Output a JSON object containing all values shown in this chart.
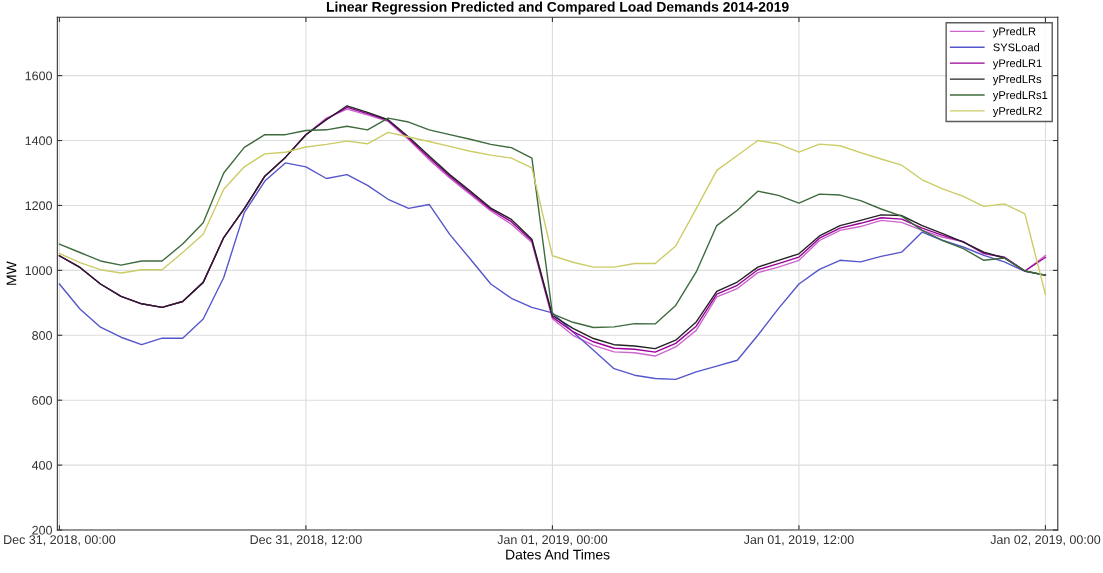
{
  "chart_data": {
    "type": "line",
    "title": "Linear Regression Predicted and Compared Load Demands 2014-2019",
    "xlabel": "Dates And Times",
    "ylabel": "MW",
    "x": [
      "2018-12-31T00:00",
      "2018-12-31T01:00",
      "2018-12-31T02:00",
      "2018-12-31T03:00",
      "2018-12-31T04:00",
      "2018-12-31T05:00",
      "2018-12-31T06:00",
      "2018-12-31T07:00",
      "2018-12-31T08:00",
      "2018-12-31T09:00",
      "2018-12-31T10:00",
      "2018-12-31T11:00",
      "2018-12-31T12:00",
      "2018-12-31T13:00",
      "2018-12-31T14:00",
      "2018-12-31T15:00",
      "2018-12-31T16:00",
      "2018-12-31T17:00",
      "2018-12-31T18:00",
      "2018-12-31T19:00",
      "2018-12-31T20:00",
      "2018-12-31T21:00",
      "2018-12-31T22:00",
      "2018-12-31T23:00",
      "2019-01-01T00:00",
      "2019-01-01T01:00",
      "2019-01-01T02:00",
      "2019-01-01T03:00",
      "2019-01-01T04:00",
      "2019-01-01T05:00",
      "2019-01-01T06:00",
      "2019-01-01T07:00",
      "2019-01-01T08:00",
      "2019-01-01T09:00",
      "2019-01-01T10:00",
      "2019-01-01T11:00",
      "2019-01-01T12:00",
      "2019-01-01T13:00",
      "2019-01-01T14:00",
      "2019-01-01T15:00",
      "2019-01-01T16:00",
      "2019-01-01T17:00",
      "2019-01-01T18:00",
      "2019-01-01T19:00",
      "2019-01-01T20:00",
      "2019-01-01T21:00",
      "2019-01-01T22:00",
      "2019-01-01T23:00",
      "2019-01-02T00:00"
    ],
    "series": [
      {
        "name": "yPredLR",
        "color": "#cc66cc",
        "values": [
          1045,
          1009,
          958,
          920,
          897,
          886,
          904,
          963,
          1101,
          1190,
          1290,
          1348,
          1418,
          1469,
          1497,
          1479,
          1459,
          1403,
          1341,
          1285,
          1234,
          1183,
          1142,
          1086,
          851,
          800,
          769,
          749,
          746,
          736,
          764,
          815,
          918,
          944,
          993,
          1010,
          1031,
          1092,
          1123,
          1135,
          1154,
          1148,
          1123,
          1102,
          1089,
          1051,
          1041,
          998,
          1046
        ]
      },
      {
        "name": "SYSLoad",
        "color": "#5555cc",
        "values": [
          958,
          881,
          825,
          794,
          771,
          791,
          791,
          850,
          978,
          1178,
          1275,
          1331,
          1319,
          1283,
          1295,
          1262,
          1219,
          1191,
          1203,
          1111,
          1035,
          958,
          914,
          886,
          869,
          810,
          754,
          697,
          677,
          667,
          664,
          687,
          705,
          723,
          800,
          882,
          958,
          1003,
          1031,
          1026,
          1043,
          1056,
          1118,
          1092,
          1072,
          1046,
          1026,
          997,
          985
        ]
      },
      {
        "name": "yPredLR1",
        "color": "#990099",
        "values": [
          1045,
          1009,
          958,
          920,
          897,
          886,
          904,
          963,
          1101,
          1190,
          1290,
          1348,
          1418,
          1466,
          1502,
          1483,
          1462,
          1407,
          1347,
          1290,
          1239,
          1188,
          1150,
          1091,
          856,
          811,
          780,
          760,
          757,
          748,
          775,
          828,
          927,
          954,
          1002,
          1021,
          1041,
          1099,
          1130,
          1145,
          1162,
          1158,
          1130,
          1108,
          1088,
          1053,
          1040,
          998,
          1040
        ]
      },
      {
        "name": "yPredLRs",
        "color": "#222222",
        "values": [
          1045,
          1009,
          958,
          920,
          897,
          886,
          904,
          963,
          1101,
          1190,
          1290,
          1348,
          1418,
          1464,
          1507,
          1487,
          1464,
          1411,
          1352,
          1295,
          1244,
          1192,
          1157,
          1096,
          861,
          821,
          790,
          771,
          767,
          759,
          785,
          841,
          935,
          964,
          1010,
          1031,
          1051,
          1106,
          1138,
          1154,
          1171,
          1169,
          1138,
          1113,
          1087,
          1056,
          1038,
          998,
          985
        ]
      },
      {
        "name": "yPredLRs1",
        "color": "#3d6b3d",
        "values": [
          1081,
          1055,
          1029,
          1016,
          1029,
          1029,
          1081,
          1147,
          1300,
          1379,
          1418,
          1418,
          1431,
          1433,
          1444,
          1433,
          1469,
          1457,
          1433,
          1418,
          1404,
          1388,
          1378,
          1346,
          866,
          840,
          824,
          826,
          836,
          835,
          892,
          995,
          1138,
          1185,
          1244,
          1231,
          1207,
          1235,
          1232,
          1215,
          1189,
          1167,
          1123,
          1092,
          1067,
          1031,
          1038,
          998,
          985
        ]
      },
      {
        "name": "yPredLR2",
        "color": "#cccc66",
        "values": [
          1052,
          1024,
          1002,
          992,
          1002,
          1002,
          1055,
          1111,
          1250,
          1319,
          1359,
          1364,
          1380,
          1388,
          1398,
          1390,
          1425,
          1411,
          1397,
          1382,
          1367,
          1355,
          1346,
          1316,
          1045,
          1025,
          1010,
          1010,
          1021,
          1021,
          1075,
          1190,
          1308,
          1354,
          1400,
          1390,
          1364,
          1389,
          1384,
          1363,
          1343,
          1324,
          1279,
          1251,
          1228,
          1197,
          1205,
          1174,
          926
        ]
      }
    ],
    "xlim": [
      "2018-12-30T23:54",
      "2019-01-02T00:36"
    ],
    "xticks": [
      {
        "value": "2018-12-31T00:00",
        "label": "Dec 31, 2018, 00:00"
      },
      {
        "value": "2018-12-31T12:00",
        "label": "Dec 31, 2018, 12:00"
      },
      {
        "value": "2019-01-01T00:00",
        "label": "Jan 01, 2019, 00:00"
      },
      {
        "value": "2019-01-01T12:00",
        "label": "Jan 01, 2019, 12:00"
      },
      {
        "value": "2019-01-02T00:00",
        "label": "Jan 02, 2019, 00:00"
      }
    ],
    "ylim": [
      200,
      1780
    ],
    "yticks": [
      200,
      400,
      600,
      800,
      1000,
      1200,
      1400,
      1600
    ],
    "grid": true,
    "legend": "top right",
    "marker": "none",
    "line_style": "solid"
  }
}
